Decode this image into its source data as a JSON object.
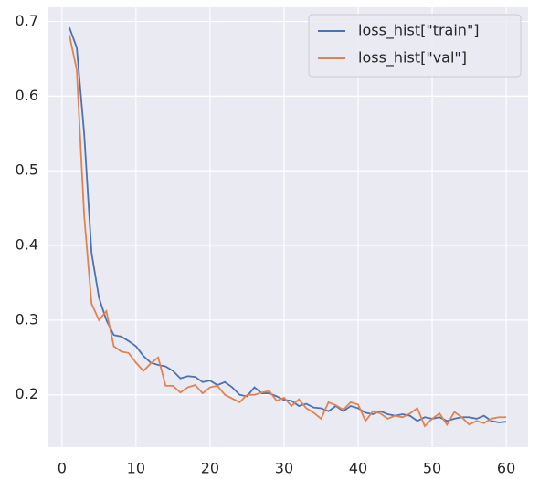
{
  "chart_data": {
    "type": "line",
    "x": [
      1,
      2,
      3,
      4,
      5,
      6,
      7,
      8,
      9,
      10,
      11,
      12,
      13,
      14,
      15,
      16,
      17,
      18,
      19,
      20,
      21,
      22,
      23,
      24,
      25,
      26,
      27,
      28,
      29,
      30,
      31,
      32,
      33,
      34,
      35,
      36,
      37,
      38,
      39,
      40,
      41,
      42,
      43,
      44,
      45,
      46,
      47,
      48,
      49,
      50,
      51,
      52,
      53,
      54,
      55,
      56,
      57,
      58,
      59,
      60
    ],
    "series": [
      {
        "name": "loss_hist[\"train\"]",
        "color": "#4c72b0",
        "values": [
          0.692,
          0.665,
          0.55,
          0.39,
          0.33,
          0.3,
          0.28,
          0.278,
          0.272,
          0.265,
          0.252,
          0.243,
          0.24,
          0.238,
          0.232,
          0.222,
          0.225,
          0.224,
          0.217,
          0.219,
          0.213,
          0.217,
          0.21,
          0.2,
          0.198,
          0.21,
          0.202,
          0.202,
          0.198,
          0.193,
          0.192,
          0.185,
          0.188,
          0.183,
          0.182,
          0.178,
          0.185,
          0.178,
          0.185,
          0.182,
          0.176,
          0.174,
          0.178,
          0.174,
          0.172,
          0.174,
          0.172,
          0.165,
          0.17,
          0.168,
          0.17,
          0.165,
          0.168,
          0.17,
          0.17,
          0.168,
          0.172,
          0.165,
          0.163,
          0.164
        ]
      },
      {
        "name": "loss_hist[\"val\"]",
        "color": "#dd8452",
        "values": [
          0.682,
          0.635,
          0.44,
          0.322,
          0.3,
          0.312,
          0.265,
          0.258,
          0.256,
          0.243,
          0.232,
          0.242,
          0.25,
          0.212,
          0.212,
          0.203,
          0.21,
          0.213,
          0.202,
          0.21,
          0.212,
          0.2,
          0.195,
          0.19,
          0.2,
          0.2,
          0.203,
          0.205,
          0.192,
          0.196,
          0.185,
          0.194,
          0.182,
          0.176,
          0.168,
          0.19,
          0.186,
          0.18,
          0.19,
          0.187,
          0.165,
          0.178,
          0.175,
          0.168,
          0.172,
          0.17,
          0.175,
          0.182,
          0.158,
          0.168,
          0.175,
          0.16,
          0.177,
          0.17,
          0.16,
          0.165,
          0.162,
          0.168,
          0.17,
          0.17
        ]
      }
    ],
    "xlim": [
      -1.95,
      62.95
    ],
    "xticks": [
      0,
      10,
      20,
      30,
      40,
      50,
      60
    ],
    "ylim": [
      0.13,
      0.719
    ],
    "yticks": [
      0.2,
      0.3,
      0.4,
      0.5,
      0.6,
      0.7
    ],
    "grid": true,
    "legend": "upper right"
  }
}
